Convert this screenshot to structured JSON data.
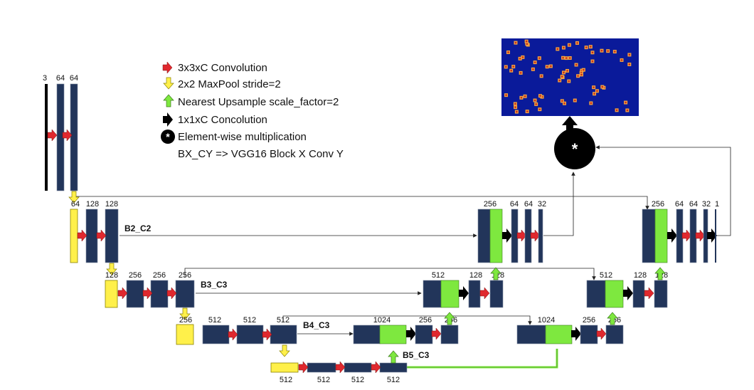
{
  "legend": [
    {
      "icon": "red-arrow-icon",
      "text": "3x3xC Convolution"
    },
    {
      "icon": "yellow-down-arrow-icon",
      "text": "2x2 MaxPool stride=2"
    },
    {
      "icon": "green-up-arrow-icon",
      "text": "Nearest Upsample scale_factor=2"
    },
    {
      "icon": "black-arrow-icon",
      "text": "1x1xC Concolution"
    },
    {
      "icon": "multiply-circle-icon",
      "text": "Element-wise multiplication"
    },
    {
      "icon": "",
      "text": "BX_CY => VGG16 Block X Conv Y"
    }
  ],
  "block_labels": {
    "b2c2": "B2_C2",
    "b3c3": "B3_C3",
    "b4c3": "B4_C3",
    "b5c3": "B5_C3"
  },
  "encoder": {
    "input": [
      "3",
      "64",
      "64"
    ],
    "level1": [
      "64",
      "128",
      "128"
    ],
    "level2": [
      "128",
      "256",
      "256",
      "256"
    ],
    "level3": [
      "256",
      "512",
      "512",
      "512"
    ],
    "level4": [
      "512",
      "512",
      "512",
      "512"
    ]
  },
  "decoder_a": {
    "level1": [
      "256",
      "64",
      "64",
      "32"
    ],
    "level2": [
      "512",
      "128",
      "128"
    ],
    "level3": [
      "1024",
      "256",
      "256"
    ]
  },
  "decoder_b": {
    "level1": [
      "256",
      "64",
      "64",
      "32",
      "1"
    ],
    "level2": [
      "512",
      "128",
      "128"
    ],
    "level3": [
      "1024",
      "256",
      "256"
    ]
  },
  "multiply_symbol": "*",
  "colors": {
    "block": "#22355a",
    "upsample": "#7ee83f",
    "pool": "#fff04a",
    "conv_arrow": "#e0282e",
    "output_bg": "#0a1a9a"
  }
}
